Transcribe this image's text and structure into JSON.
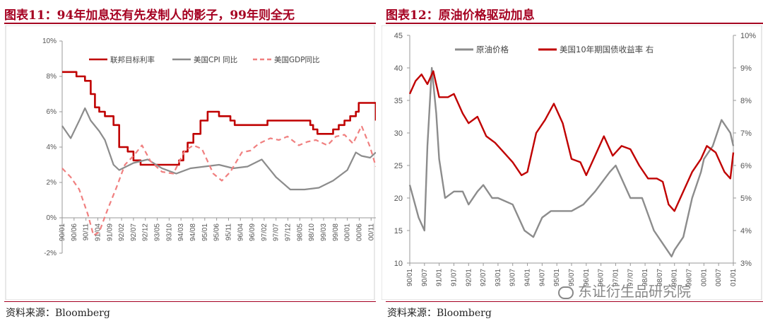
{
  "left": {
    "title": "图表11：94年加息还有先发制人的影子，99年则全无",
    "source": "资料来源：Bloomberg"
  },
  "right": {
    "title": "图表12：原油价格驱动加息",
    "source": "资料来源：Bloomberg"
  },
  "watermark": "东证衍生品研究院",
  "colors": {
    "red": "#c00000",
    "gray": "#8c8c8c",
    "pink": "#f08080",
    "title": "#a50021"
  },
  "chart_data": [
    {
      "type": "line",
      "title": "图表11：94年加息还有先发制人的影子，99年则全无",
      "x_ticks": [
        "90/01",
        "90/06",
        "90/11",
        "91/04",
        "91/09",
        "92/02",
        "92/07",
        "92/12",
        "93/05",
        "93/10",
        "94/03",
        "94/08",
        "95/01",
        "95/06",
        "95/11",
        "96/04",
        "96/09",
        "97/02",
        "97/07",
        "97/12",
        "98/05",
        "98/10",
        "99/03",
        "99/08",
        "00/01",
        "00/06",
        "00/11"
      ],
      "y_ticks": [
        "-2%",
        "0%",
        "2%",
        "4%",
        "6%",
        "8%",
        "10%"
      ],
      "ylim": [
        -2,
        10
      ],
      "series": [
        {
          "name": "联邦目标利率",
          "style": "solid",
          "color": "#c00000",
          "x": [
            1990.0,
            1990.5,
            1990.8,
            1991.0,
            1991.15,
            1991.3,
            1991.5,
            1991.8,
            1992.0,
            1992.3,
            1992.5,
            1992.75,
            1993.5,
            1994.0,
            1994.1,
            1994.25,
            1994.4,
            1994.6,
            1994.85,
            1995.1,
            1995.5,
            1995.9,
            1996.05,
            1997.2,
            1998.7,
            1998.8,
            1998.95,
            1999.5,
            1999.7,
            1999.9,
            2000.1,
            2000.3,
            2000.4,
            2000.95,
            2001.0
          ],
          "y": [
            8.25,
            8.0,
            7.75,
            7.0,
            6.25,
            6.0,
            5.75,
            5.25,
            4.0,
            3.75,
            3.25,
            3.0,
            3.0,
            3.0,
            3.25,
            3.75,
            4.25,
            4.75,
            5.5,
            6.0,
            5.75,
            5.5,
            5.25,
            5.5,
            5.25,
            5.0,
            4.75,
            5.0,
            5.25,
            5.5,
            5.75,
            6.0,
            6.5,
            6.5,
            5.5
          ]
        },
        {
          "name": "美国CPI 同比",
          "style": "solid",
          "color": "#8c8c8c",
          "x": [
            1990.0,
            1990.3,
            1990.6,
            1990.8,
            1991.0,
            1991.3,
            1991.5,
            1991.8,
            1992.0,
            1992.5,
            1993.0,
            1993.5,
            1994.0,
            1994.5,
            1995.0,
            1995.5,
            1996.0,
            1996.5,
            1997.0,
            1997.5,
            1998.0,
            1998.5,
            1999.0,
            1999.5,
            2000.0,
            2000.3,
            2000.5,
            2000.8,
            2001.0
          ],
          "y": [
            5.2,
            4.5,
            5.5,
            6.2,
            5.5,
            4.9,
            4.4,
            3.0,
            2.7,
            3.1,
            3.3,
            2.8,
            2.5,
            2.8,
            2.9,
            3.0,
            2.8,
            2.9,
            3.3,
            2.3,
            1.6,
            1.6,
            1.7,
            2.1,
            2.7,
            3.7,
            3.5,
            3.4,
            3.7
          ]
        },
        {
          "name": "美国GDP同比",
          "style": "dashed",
          "color": "#f08080",
          "x": [
            1990.0,
            1990.3,
            1990.6,
            1990.9,
            1991.1,
            1991.3,
            1991.6,
            1991.9,
            1992.2,
            1992.5,
            1992.8,
            1993.1,
            1993.5,
            1993.9,
            1994.3,
            1994.6,
            1994.9,
            1995.3,
            1995.6,
            1995.9,
            1996.3,
            1996.6,
            1996.9,
            1997.3,
            1997.6,
            1997.9,
            1998.3,
            1998.6,
            1998.9,
            1999.3,
            1999.6,
            1999.9,
            2000.2,
            2000.5,
            2000.8,
            2001.0
          ],
          "y": [
            2.8,
            2.3,
            1.6,
            0.2,
            -1.0,
            -0.8,
            0.5,
            1.7,
            3.0,
            3.5,
            4.1,
            3.2,
            2.6,
            2.5,
            3.8,
            4.1,
            3.9,
            2.5,
            2.1,
            2.6,
            3.7,
            3.8,
            4.2,
            4.5,
            4.4,
            4.6,
            4.1,
            4.3,
            4.4,
            4.1,
            4.6,
            4.7,
            4.2,
            5.2,
            4.0,
            2.9
          ]
        }
      ]
    },
    {
      "type": "line",
      "title": "图表12：原油价格驱动加息",
      "x_ticks": [
        "90/01",
        "90/07",
        "91/01",
        "91/07",
        "92/01",
        "92/07",
        "93/01",
        "93/07",
        "94/01",
        "94/07",
        "95/01",
        "95/07",
        "96/01",
        "96/07",
        "97/01",
        "97/07",
        "98/01",
        "98/07",
        "99/01",
        "99/07",
        "00/01",
        "00/07",
        "01/01"
      ],
      "y_left_ticks": [
        "10",
        "15",
        "20",
        "25",
        "30",
        "35",
        "40",
        "45"
      ],
      "y_right_ticks": [
        "3%",
        "4%",
        "5%",
        "6%",
        "7%",
        "8%",
        "9%",
        "10%"
      ],
      "ylim_left": [
        10,
        45
      ],
      "ylim_right": [
        3,
        10
      ],
      "series": [
        {
          "name": "原油价格",
          "axis": "left",
          "color": "#8c8c8c",
          "x": [
            1990.0,
            1990.3,
            1990.5,
            1990.6,
            1990.75,
            1990.9,
            1991.0,
            1991.2,
            1991.5,
            1991.8,
            1992.0,
            1992.3,
            1992.5,
            1992.8,
            1993.0,
            1993.5,
            1993.9,
            1994.2,
            1994.5,
            1994.8,
            1995.0,
            1995.5,
            1995.9,
            1996.3,
            1996.8,
            1997.0,
            1997.5,
            1997.9,
            1998.3,
            1998.6,
            1998.9,
            1999.0,
            1999.3,
            1999.6,
            1999.9,
            2000.0,
            2000.3,
            2000.6,
            2000.9,
            2001.0
          ],
          "y": [
            22,
            17,
            15,
            28,
            40,
            33,
            26,
            20,
            21,
            21,
            19,
            21,
            22,
            20,
            20,
            19,
            15,
            14,
            17,
            18,
            18,
            18,
            19,
            21,
            24,
            25,
            20,
            20,
            15,
            13,
            11,
            12,
            14,
            20,
            24,
            26,
            28,
            32,
            30,
            28
          ]
        },
        {
          "name": "美国10年期国债收益率 右",
          "axis": "right",
          "color": "#c00000",
          "x": [
            1990.0,
            1990.2,
            1990.4,
            1990.6,
            1990.8,
            1991.0,
            1991.3,
            1991.5,
            1991.8,
            1992.0,
            1992.3,
            1992.6,
            1992.9,
            1993.2,
            1993.5,
            1993.8,
            1994.0,
            1994.3,
            1994.6,
            1994.9,
            1995.2,
            1995.5,
            1995.8,
            1996.0,
            1996.3,
            1996.6,
            1996.9,
            1997.2,
            1997.5,
            1997.8,
            1998.1,
            1998.4,
            1998.6,
            1998.8,
            1999.0,
            1999.3,
            1999.6,
            1999.9,
            2000.1,
            2000.4,
            2000.7,
            2000.9,
            2001.0
          ],
          "y": [
            8.2,
            8.6,
            8.8,
            8.5,
            8.9,
            8.1,
            8.1,
            8.2,
            7.6,
            7.3,
            7.5,
            6.9,
            6.7,
            6.4,
            6.1,
            5.7,
            5.8,
            7.0,
            7.4,
            7.9,
            7.3,
            6.2,
            6.1,
            5.7,
            6.3,
            6.9,
            6.3,
            6.6,
            6.5,
            6.0,
            5.6,
            5.6,
            5.5,
            4.8,
            4.6,
            5.2,
            5.8,
            6.2,
            6.6,
            6.4,
            5.8,
            5.6,
            6.4
          ]
        }
      ]
    }
  ]
}
